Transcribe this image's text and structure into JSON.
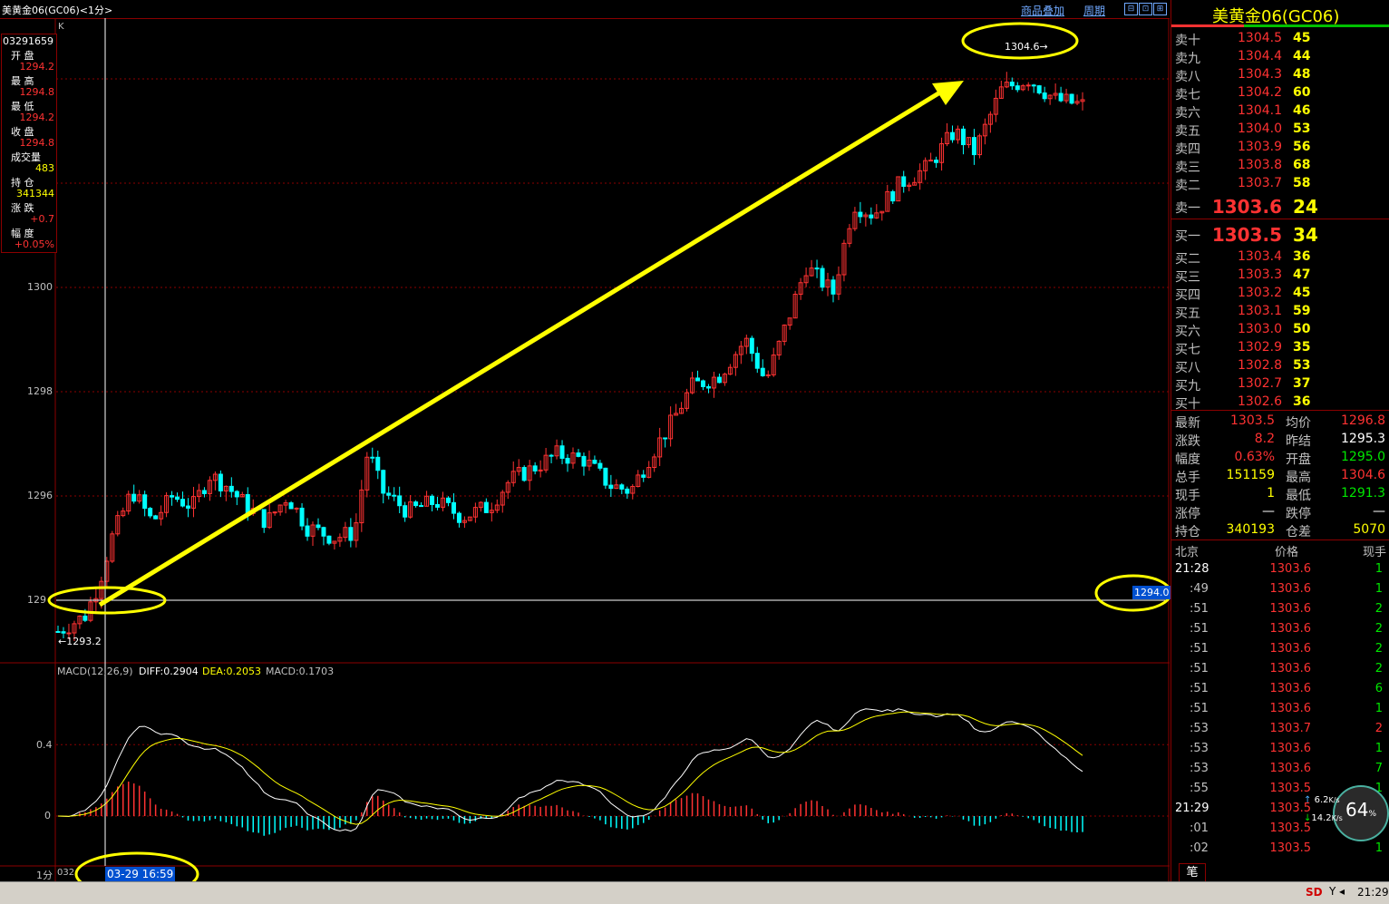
{
  "title": "美黄金06(GC06)<1分>",
  "toolbar": {
    "overlay": "商品叠加",
    "period": "周期",
    "btn1": "⊟",
    "btn2": "⊡",
    "btn3": "⊞"
  },
  "infobox": {
    "code": "03291659",
    "open_label": "开 盘",
    "open": "1294.2",
    "high_label": "最 高",
    "high": "1294.8",
    "low_label": "最 低",
    "low": "1294.2",
    "close_label": "收 盘",
    "close": "1294.8",
    "vol_label": "成交量",
    "vol": "483",
    "oi_label": "持 仓",
    "oi": "341344",
    "chg_label": "涨 跌",
    "chg": "+0.7",
    "pct_label": "幅 度",
    "pct": "+0.05%"
  },
  "chart": {
    "k_label": "K",
    "price_ticks": [
      "1300",
      "1298",
      "1296",
      "129"
    ],
    "high_marker": "1304.6→",
    "low_marker": "←1293.2",
    "hline_label": "1294.0",
    "macd_title": "MACD(12,26,9)",
    "diff": "DIFF:0.2904",
    "dea": "DEA:0.2053",
    "macd": "MACD:0.1703",
    "macd_ticks": [
      "0.4",
      "0"
    ],
    "period_label": "1分",
    "date_stub": "032",
    "cursor_time": "03-29 16:59"
  },
  "right": {
    "symbol": "美黄金06(GC06)",
    "asks": [
      {
        "l": "卖十",
        "p": "1304.5",
        "v": "45"
      },
      {
        "l": "卖九",
        "p": "1304.4",
        "v": "44"
      },
      {
        "l": "卖八",
        "p": "1304.3",
        "v": "48"
      },
      {
        "l": "卖七",
        "p": "1304.2",
        "v": "60"
      },
      {
        "l": "卖六",
        "p": "1304.1",
        "v": "46"
      },
      {
        "l": "卖五",
        "p": "1304.0",
        "v": "53"
      },
      {
        "l": "卖四",
        "p": "1303.9",
        "v": "56"
      },
      {
        "l": "卖三",
        "p": "1303.8",
        "v": "68"
      },
      {
        "l": "卖二",
        "p": "1303.7",
        "v": "58"
      }
    ],
    "ask1": {
      "l": "卖一",
      "p": "1303.6",
      "v": "24"
    },
    "bid1": {
      "l": "买一",
      "p": "1303.5",
      "v": "34"
    },
    "bids": [
      {
        "l": "买二",
        "p": "1303.4",
        "v": "36"
      },
      {
        "l": "买三",
        "p": "1303.3",
        "v": "47"
      },
      {
        "l": "买四",
        "p": "1303.2",
        "v": "45"
      },
      {
        "l": "买五",
        "p": "1303.1",
        "v": "59"
      },
      {
        "l": "买六",
        "p": "1303.0",
        "v": "50"
      },
      {
        "l": "买七",
        "p": "1302.9",
        "v": "35"
      },
      {
        "l": "买八",
        "p": "1302.8",
        "v": "53"
      },
      {
        "l": "买九",
        "p": "1302.7",
        "v": "37"
      },
      {
        "l": "买十",
        "p": "1302.6",
        "v": "36"
      }
    ],
    "quote": [
      {
        "a": "最新",
        "b": "1303.5",
        "bc": "red",
        "c": "均价",
        "d": "1296.8",
        "dc": "red"
      },
      {
        "a": "涨跌",
        "b": "8.2",
        "bc": "red",
        "c": "昨结",
        "d": "1295.3",
        "dc": "white"
      },
      {
        "a": "幅度",
        "b": "0.63%",
        "bc": "red",
        "c": "开盘",
        "d": "1295.0",
        "dc": "green"
      },
      {
        "a": "总手",
        "b": "151159",
        "bc": "yellow",
        "c": "最高",
        "d": "1304.6",
        "dc": "red"
      },
      {
        "a": "现手",
        "b": "1",
        "bc": "yellow",
        "c": "最低",
        "d": "1291.3",
        "dc": "green"
      },
      {
        "a": "涨停",
        "b": "—",
        "bc": "white",
        "c": "跌停",
        "d": "—",
        "dc": "white"
      },
      {
        "a": "持仓",
        "b": "340193",
        "bc": "yellow",
        "c": "仓差",
        "d": "5070",
        "dc": "yellow"
      }
    ],
    "ticks_header": {
      "a": "北京",
      "b": "价格",
      "c": "现手"
    },
    "ticks": [
      {
        "t": "21:28",
        "p": "1303.6",
        "v": "1",
        "vc": "green"
      },
      {
        "t": ":49",
        "p": "1303.6",
        "v": "1",
        "vc": "green"
      },
      {
        "t": ":51",
        "p": "1303.6",
        "v": "2",
        "vc": "green"
      },
      {
        "t": ":51",
        "p": "1303.6",
        "v": "2",
        "vc": "green"
      },
      {
        "t": ":51",
        "p": "1303.6",
        "v": "2",
        "vc": "green"
      },
      {
        "t": ":51",
        "p": "1303.6",
        "v": "2",
        "vc": "green"
      },
      {
        "t": ":51",
        "p": "1303.6",
        "v": "6",
        "vc": "green"
      },
      {
        "t": ":51",
        "p": "1303.6",
        "v": "1",
        "vc": "green"
      },
      {
        "t": ":53",
        "p": "1303.7",
        "v": "2",
        "vc": "red"
      },
      {
        "t": ":53",
        "p": "1303.6",
        "v": "1",
        "vc": "green"
      },
      {
        "t": ":53",
        "p": "1303.6",
        "v": "7",
        "vc": "green"
      },
      {
        "t": ":55",
        "p": "1303.5",
        "v": "1",
        "vc": "green"
      },
      {
        "t": "21:29",
        "p": "1303.5",
        "v": "1",
        "vc": "green"
      },
      {
        "t": ":01",
        "p": "1303.5",
        "v": "1",
        "vc": "green"
      },
      {
        "t": ":02",
        "p": "1303.5",
        "v": "1",
        "vc": "green"
      }
    ],
    "tab": "笔"
  },
  "widget": {
    "up": "6.2",
    "down": "14.2",
    "unit": "K/s",
    "pct": "64",
    "pct_unit": "%"
  },
  "status": {
    "sd": "SD",
    "time": "21:29"
  },
  "colors": {
    "up": "#ff3232",
    "down": "#00ffff",
    "diff": "#ffffff",
    "dea": "#ffff00",
    "grid": "#8b0000",
    "arrow": "#ffff00"
  }
}
